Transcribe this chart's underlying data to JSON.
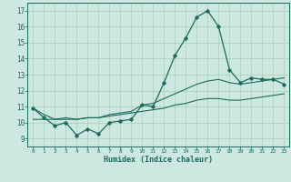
{
  "xlabel": "Humidex (Indice chaleur)",
  "background_color": "#cce8e0",
  "grid_color": "#aaccbb",
  "line_color": "#1a6b5a",
  "xlim": [
    -0.5,
    23.5
  ],
  "ylim": [
    8.5,
    17.5
  ],
  "xticks": [
    0,
    1,
    2,
    3,
    4,
    5,
    6,
    7,
    8,
    9,
    10,
    11,
    12,
    13,
    14,
    15,
    16,
    17,
    18,
    19,
    20,
    21,
    22,
    23
  ],
  "yticks": [
    9,
    10,
    11,
    12,
    13,
    14,
    15,
    16,
    17
  ],
  "main_line": [
    10.9,
    10.3,
    9.8,
    10.0,
    9.2,
    9.6,
    9.3,
    10.0,
    10.1,
    10.2,
    11.1,
    11.0,
    12.5,
    14.2,
    15.3,
    16.6,
    17.0,
    16.0,
    13.3,
    12.5,
    12.8,
    12.7,
    12.7,
    12.4
  ],
  "upper_line": [
    10.9,
    10.5,
    10.2,
    10.3,
    10.2,
    10.3,
    10.3,
    10.5,
    10.6,
    10.7,
    11.1,
    11.2,
    11.5,
    11.8,
    12.1,
    12.4,
    12.6,
    12.7,
    12.5,
    12.4,
    12.5,
    12.6,
    12.7,
    12.8
  ],
  "lower_line": [
    10.2,
    10.2,
    10.2,
    10.2,
    10.2,
    10.3,
    10.3,
    10.4,
    10.5,
    10.6,
    10.7,
    10.8,
    10.9,
    11.1,
    11.2,
    11.4,
    11.5,
    11.5,
    11.4,
    11.4,
    11.5,
    11.6,
    11.7,
    11.8
  ]
}
